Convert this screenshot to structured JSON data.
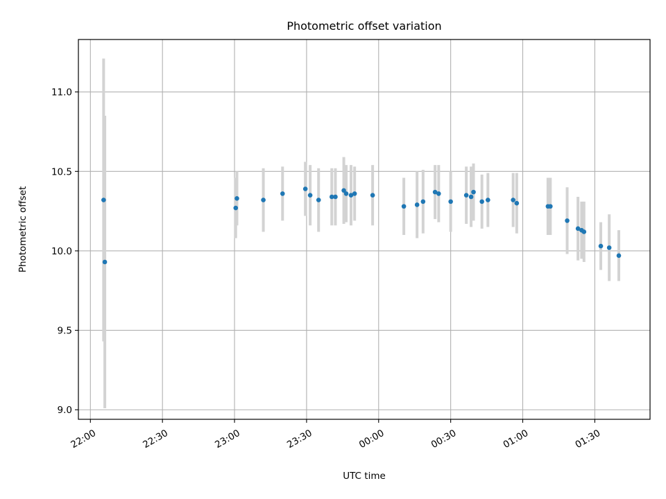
{
  "chart_data": {
    "type": "scatter",
    "title": "Photometric offset variation",
    "xlabel": "UTC time",
    "ylabel": "Photometric offset",
    "x_unit": "UTC time (HH:MM)",
    "xlim": [
      "21:55",
      "01:53"
    ],
    "ylim": [
      8.94,
      11.33
    ],
    "x_ticks": [
      "22:00",
      "22:30",
      "23:00",
      "23:30",
      "00:00",
      "00:30",
      "01:00",
      "01:30"
    ],
    "y_ticks": [
      "9.0",
      "9.5",
      "10.0",
      "10.5",
      "11.0"
    ],
    "grid": true,
    "colors": {
      "point": "#1f77b4",
      "errorbar": "#d3d3d3",
      "grid": "#b0b0b0"
    },
    "points": [
      {
        "x": "22:05:30",
        "y": 10.32,
        "yerr": 0.89
      },
      {
        "x": "22:06:00",
        "y": 9.93,
        "yerr": 0.92
      },
      {
        "x": "23:00:30",
        "y": 10.27,
        "yerr": 0.19
      },
      {
        "x": "23:01:00",
        "y": 10.33,
        "yerr": 0.17
      },
      {
        "x": "23:12:00",
        "y": 10.32,
        "yerr": 0.2
      },
      {
        "x": "23:20:00",
        "y": 10.36,
        "yerr": 0.17
      },
      {
        "x": "23:29:30",
        "y": 10.39,
        "yerr": 0.17
      },
      {
        "x": "23:31:30",
        "y": 10.35,
        "yerr": 0.19
      },
      {
        "x": "23:35:00",
        "y": 10.32,
        "yerr": 0.2
      },
      {
        "x": "23:40:30",
        "y": 10.34,
        "yerr": 0.18
      },
      {
        "x": "23:42:00",
        "y": 10.34,
        "yerr": 0.18
      },
      {
        "x": "23:45:30",
        "y": 10.38,
        "yerr": 0.21
      },
      {
        "x": "23:46:30",
        "y": 10.36,
        "yerr": 0.18
      },
      {
        "x": "23:48:30",
        "y": 10.35,
        "yerr": 0.19
      },
      {
        "x": "23:50:00",
        "y": 10.36,
        "yerr": 0.17
      },
      {
        "x": "23:57:30",
        "y": 10.35,
        "yerr": 0.19
      },
      {
        "x": "00:10:30",
        "y": 10.28,
        "yerr": 0.18
      },
      {
        "x": "00:16:00",
        "y": 10.29,
        "yerr": 0.21
      },
      {
        "x": "00:18:30",
        "y": 10.31,
        "yerr": 0.2
      },
      {
        "x": "00:23:30",
        "y": 10.37,
        "yerr": 0.17
      },
      {
        "x": "00:25:00",
        "y": 10.36,
        "yerr": 0.18
      },
      {
        "x": "00:30:00",
        "y": 10.31,
        "yerr": 0.19
      },
      {
        "x": "00:36:30",
        "y": 10.35,
        "yerr": 0.18
      },
      {
        "x": "00:38:30",
        "y": 10.34,
        "yerr": 0.19
      },
      {
        "x": "00:39:30",
        "y": 10.37,
        "yerr": 0.18
      },
      {
        "x": "00:43:00",
        "y": 10.31,
        "yerr": 0.17
      },
      {
        "x": "00:45:30",
        "y": 10.32,
        "yerr": 0.17
      },
      {
        "x": "00:56:00",
        "y": 10.32,
        "yerr": 0.17
      },
      {
        "x": "00:57:30",
        "y": 10.3,
        "yerr": 0.19
      },
      {
        "x": "01:10:30",
        "y": 10.28,
        "yerr": 0.18
      },
      {
        "x": "01:11:30",
        "y": 10.28,
        "yerr": 0.18
      },
      {
        "x": "01:18:30",
        "y": 10.19,
        "yerr": 0.21
      },
      {
        "x": "01:23:00",
        "y": 10.14,
        "yerr": 0.2
      },
      {
        "x": "01:24:30",
        "y": 10.13,
        "yerr": 0.18
      },
      {
        "x": "01:25:30",
        "y": 10.12,
        "yerr": 0.19
      },
      {
        "x": "01:32:30",
        "y": 10.03,
        "yerr": 0.15
      },
      {
        "x": "01:36:00",
        "y": 10.02,
        "yerr": 0.21
      },
      {
        "x": "01:40:00",
        "y": 9.97,
        "yerr": 0.16
      }
    ]
  }
}
